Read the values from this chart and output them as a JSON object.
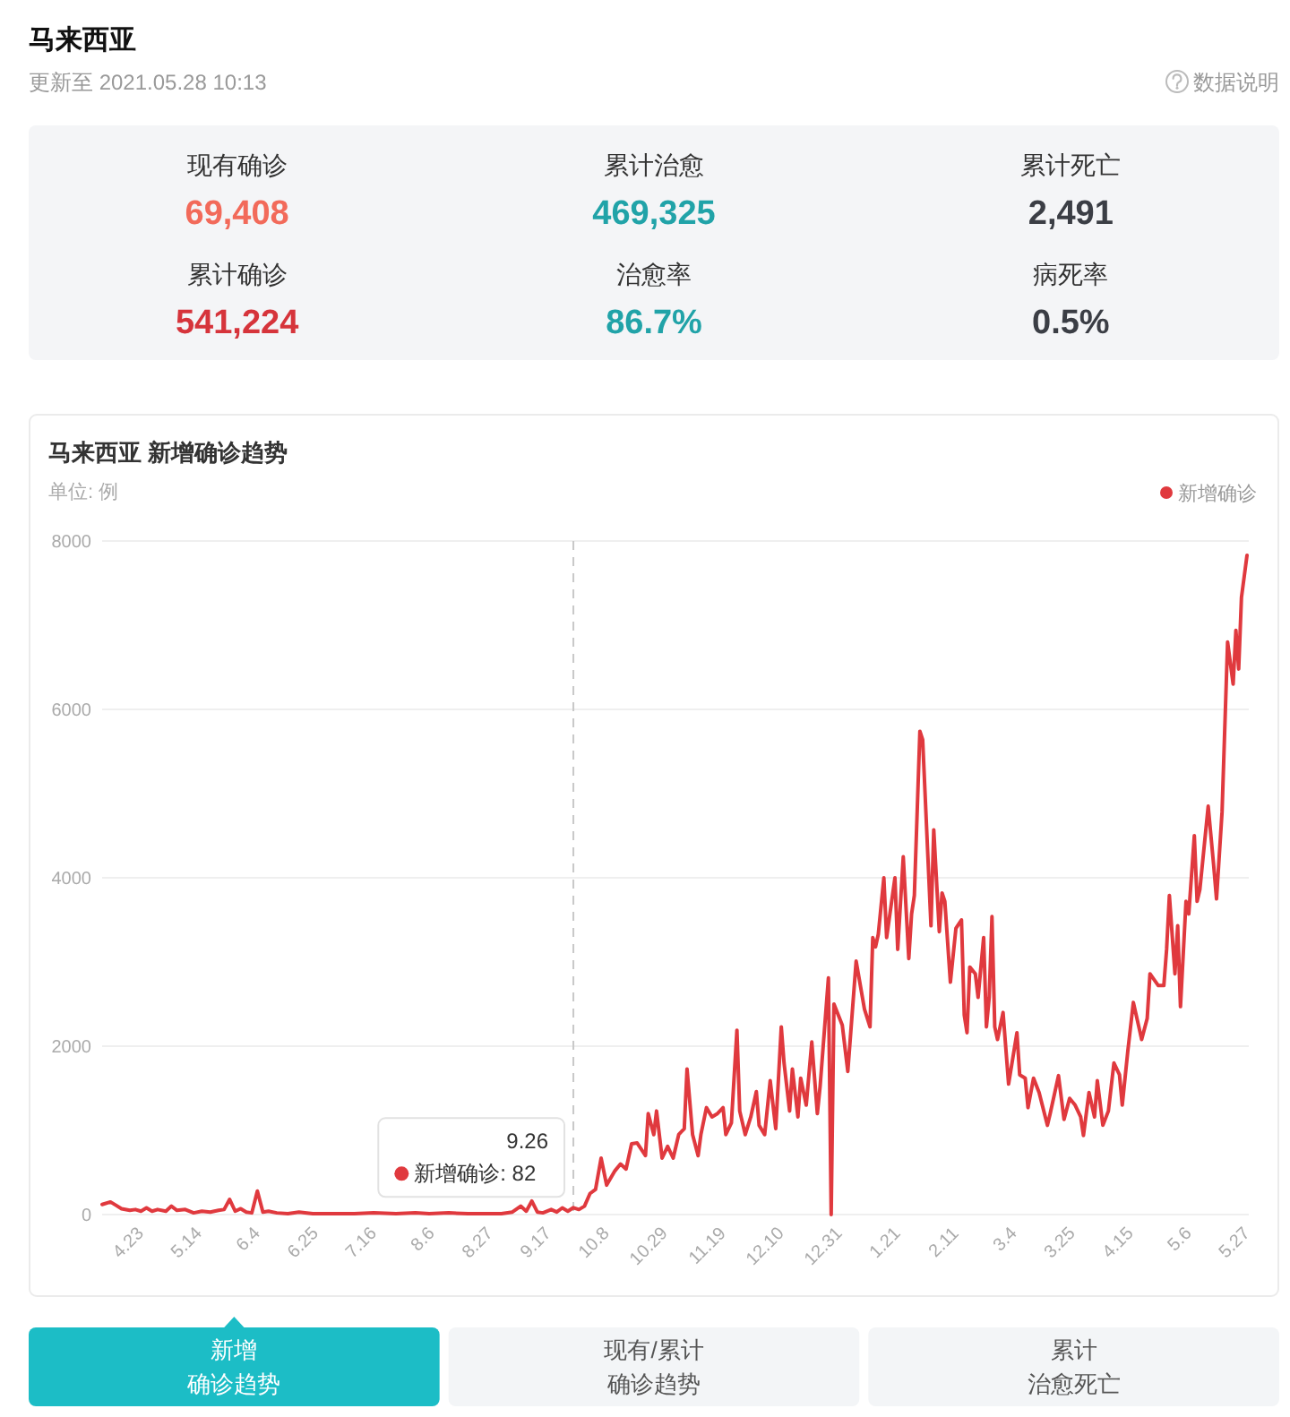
{
  "chart_data": [
    {
      "type": "other",
      "title": "马来西亚",
      "subtitle": "更新至 2021.05.28 10:13",
      "annotations": [
        "数据说明"
      ],
      "categories": [
        "现有确诊",
        "累计治愈",
        "累计死亡",
        "累计确诊",
        "治愈率",
        "病死率"
      ],
      "value_labels": [
        "69,408",
        "469,325",
        "2,491",
        "541,224",
        "86.7%",
        "0.5%"
      ],
      "colors": [
        "#f26a5a",
        "#21a3a8",
        "#3b3e45",
        "#d6343b",
        "#21a3a8",
        "#3b3e45"
      ]
    },
    {
      "type": "line",
      "title": "马来西亚 新增确诊趋势",
      "ylabel": "单位: 例",
      "legend": "top right",
      "grid": "y",
      "x": [
        "2020-04-09",
        "2020-04-12",
        "2020-04-14",
        "2020-04-16",
        "2020-04-19",
        "2020-04-21",
        "2020-04-23",
        "2020-04-25",
        "2020-04-27",
        "2020-04-29",
        "2020-05-02",
        "2020-05-04",
        "2020-05-06",
        "2020-05-09",
        "2020-05-12",
        "2020-05-15",
        "2020-05-18",
        "2020-05-21",
        "2020-05-23",
        "2020-05-25",
        "2020-05-27",
        "2020-05-29",
        "2020-05-31",
        "2020-06-02",
        "2020-06-04",
        "2020-06-06",
        "2020-06-08",
        "2020-06-11",
        "2020-06-15",
        "2020-06-19",
        "2020-06-24",
        "2020-07-01",
        "2020-07-09",
        "2020-07-16",
        "2020-07-24",
        "2020-07-31",
        "2020-08-05",
        "2020-08-12",
        "2020-08-19",
        "2020-08-25",
        "2020-08-31",
        "2020-09-04",
        "2020-09-07",
        "2020-09-09",
        "2020-09-11",
        "2020-09-13",
        "2020-09-15",
        "2020-09-18",
        "2020-09-20",
        "2020-09-22",
        "2020-09-24",
        "2020-09-26",
        "2020-09-28",
        "2020-09-30",
        "2020-10-02",
        "2020-10-04",
        "2020-10-06",
        "2020-10-08",
        "2020-10-11",
        "2020-10-13",
        "2020-10-15",
        "2020-10-17",
        "2020-10-19",
        "2020-10-22",
        "2020-10-23",
        "2020-10-25",
        "2020-10-26",
        "2020-10-28",
        "2020-10-30",
        "2020-11-01",
        "2020-11-03",
        "2020-11-05",
        "2020-11-06",
        "2020-11-08",
        "2020-11-10",
        "2020-11-11",
        "2020-11-13",
        "2020-11-15",
        "2020-11-17",
        "2020-11-19",
        "2020-11-20",
        "2020-11-22",
        "2020-11-24",
        "2020-11-25",
        "2020-11-27",
        "2020-11-29",
        "2020-12-01",
        "2020-12-02",
        "2020-12-04",
        "2020-12-06",
        "2020-12-08",
        "2020-12-10",
        "2020-12-11",
        "2020-12-13",
        "2020-12-14",
        "2020-12-16",
        "2020-12-17",
        "2020-12-19",
        "2020-12-21",
        "2020-12-23",
        "2020-12-24",
        "2020-12-27",
        "2020-12-28",
        "2020-12-29",
        "2021-01-01",
        "2021-01-03",
        "2021-01-06",
        "2021-01-09",
        "2021-01-11",
        "2021-01-12",
        "2021-01-13",
        "2021-01-14",
        "2021-01-16",
        "2021-01-17",
        "2021-01-20",
        "2021-01-21",
        "2021-01-23",
        "2021-01-25",
        "2021-01-26",
        "2021-01-27",
        "2021-01-29",
        "2021-01-30",
        "2021-02-02",
        "2021-02-03",
        "2021-02-05",
        "2021-02-06",
        "2021-02-07",
        "2021-02-09",
        "2021-02-11",
        "2021-02-13",
        "2021-02-14",
        "2021-02-15",
        "2021-02-16",
        "2021-02-18",
        "2021-02-19",
        "2021-02-21",
        "2021-02-22",
        "2021-02-23",
        "2021-02-24",
        "2021-02-25",
        "2021-02-26",
        "2021-02-28",
        "2021-03-02",
        "2021-03-05",
        "2021-03-06",
        "2021-03-08",
        "2021-03-09",
        "2021-03-11",
        "2021-03-13",
        "2021-03-16",
        "2021-03-17",
        "2021-03-20",
        "2021-03-22",
        "2021-03-24",
        "2021-03-26",
        "2021-03-28",
        "2021-03-29",
        "2021-03-31",
        "2021-04-02",
        "2021-04-03",
        "2021-04-05",
        "2021-04-07",
        "2021-04-09",
        "2021-04-11",
        "2021-04-12",
        "2021-04-14",
        "2021-04-16",
        "2021-04-19",
        "2021-04-21",
        "2021-04-22",
        "2021-04-25",
        "2021-04-27",
        "2021-04-28",
        "2021-04-29",
        "2021-05-01",
        "2021-05-02",
        "2021-05-03",
        "2021-05-05",
        "2021-05-06",
        "2021-05-08",
        "2021-05-09",
        "2021-05-10",
        "2021-05-13",
        "2021-05-15",
        "2021-05-16",
        "2021-05-18",
        "2021-05-20",
        "2021-05-22",
        "2021-05-23",
        "2021-05-24",
        "2021-05-25",
        "2021-05-27"
      ],
      "series": [
        {
          "name": "新增确诊",
          "color": "#e0393e",
          "values": [
            120,
            150,
            110,
            70,
            50,
            60,
            40,
            80,
            40,
            60,
            40,
            100,
            50,
            60,
            20,
            40,
            30,
            50,
            60,
            180,
            40,
            70,
            30,
            20,
            280,
            30,
            40,
            20,
            10,
            30,
            10,
            10,
            10,
            20,
            10,
            20,
            10,
            20,
            10,
            10,
            10,
            30,
            100,
            40,
            160,
            30,
            20,
            60,
            30,
            80,
            40,
            82,
            60,
            100,
            250,
            300,
            670,
            350,
            520,
            600,
            540,
            840,
            850,
            700,
            1200,
            950,
            1230,
            670,
            810,
            670,
            950,
            1020,
            1730,
            950,
            700,
            950,
            1270,
            1160,
            1200,
            1270,
            950,
            1090,
            2190,
            1230,
            950,
            1160,
            1460,
            1060,
            950,
            1590,
            1020,
            2230,
            1800,
            1230,
            1730,
            1160,
            1620,
            1300,
            2050,
            1200,
            1520,
            2810,
            0,
            2500,
            2250,
            1700,
            3010,
            2440,
            2230,
            3290,
            3180,
            3330,
            4000,
            3290,
            4000,
            3150,
            4250,
            3040,
            3570,
            3790,
            5740,
            5640,
            3430,
            4570,
            3360,
            3820,
            3720,
            2760,
            3400,
            3500,
            2370,
            2160,
            2940,
            2860,
            2580,
            3290,
            2230,
            2580,
            3540,
            2230,
            2080,
            2400,
            1550,
            2160,
            1660,
            1620,
            1270,
            1620,
            1450,
            1060,
            1200,
            1650,
            1130,
            1380,
            1300,
            1160,
            940,
            1450,
            1160,
            1590,
            1060,
            1230,
            1800,
            1660,
            1300,
            1940,
            2520,
            2080,
            2330,
            2860,
            2720,
            2720,
            3150,
            3790,
            2860,
            3430,
            2470,
            3720,
            3570,
            4500,
            3720,
            3860,
            4850,
            4140,
            3750,
            4780,
            6800,
            6300,
            6940,
            6480,
            7330,
            7830
          ]
        }
      ],
      "xlim": [
        "2020-04-09",
        "2021-05-27"
      ],
      "xticks": [
        {
          "value": "2020-04-23",
          "label": "4.23"
        },
        {
          "value": "2020-05-14",
          "label": "5.14"
        },
        {
          "value": "2020-06-04",
          "label": "6.4"
        },
        {
          "value": "2020-06-25",
          "label": "6.25"
        },
        {
          "value": "2020-07-16",
          "label": "7.16"
        },
        {
          "value": "2020-08-06",
          "label": "8.6"
        },
        {
          "value": "2020-08-27",
          "label": "8.27"
        },
        {
          "value": "2020-09-17",
          "label": "9.17"
        },
        {
          "value": "2020-10-08",
          "label": "10.8"
        },
        {
          "value": "2020-10-29",
          "label": "10.29"
        },
        {
          "value": "2020-11-19",
          "label": "11.19"
        },
        {
          "value": "2020-12-10",
          "label": "12.10"
        },
        {
          "value": "2020-12-31",
          "label": "12.31"
        },
        {
          "value": "2021-01-21",
          "label": "1.21"
        },
        {
          "value": "2021-02-11",
          "label": "2.11"
        },
        {
          "value": "2021-03-04",
          "label": "3.4"
        },
        {
          "value": "2021-03-25",
          "label": "3.25"
        },
        {
          "value": "2021-04-15",
          "label": "4.15"
        },
        {
          "value": "2021-05-06",
          "label": "5.6"
        },
        {
          "value": "2021-05-27",
          "label": "5.27"
        }
      ],
      "ylim": [
        0,
        8000
      ],
      "yticks": [
        0,
        2000,
        4000,
        6000,
        8000
      ],
      "ref_lines": [
        {
          "axis": "x",
          "value": "2020-09-26",
          "color": "#c8c8c8",
          "line_style": "dashed"
        }
      ],
      "annotations": [
        {
          "text": "9.26",
          "x": "2020-09-26",
          "y": 82
        },
        {
          "text": "新增确诊: 82",
          "x": "2020-09-26",
          "y": 82
        }
      ]
    },
    {
      "type": "other",
      "categories": [
        "新增确诊趋势",
        "现有/累计确诊趋势",
        "累计治愈死亡"
      ],
      "colors": [
        "#1cbdc6",
        "#f3f5f7",
        "#f3f5f7"
      ]
    }
  ]
}
